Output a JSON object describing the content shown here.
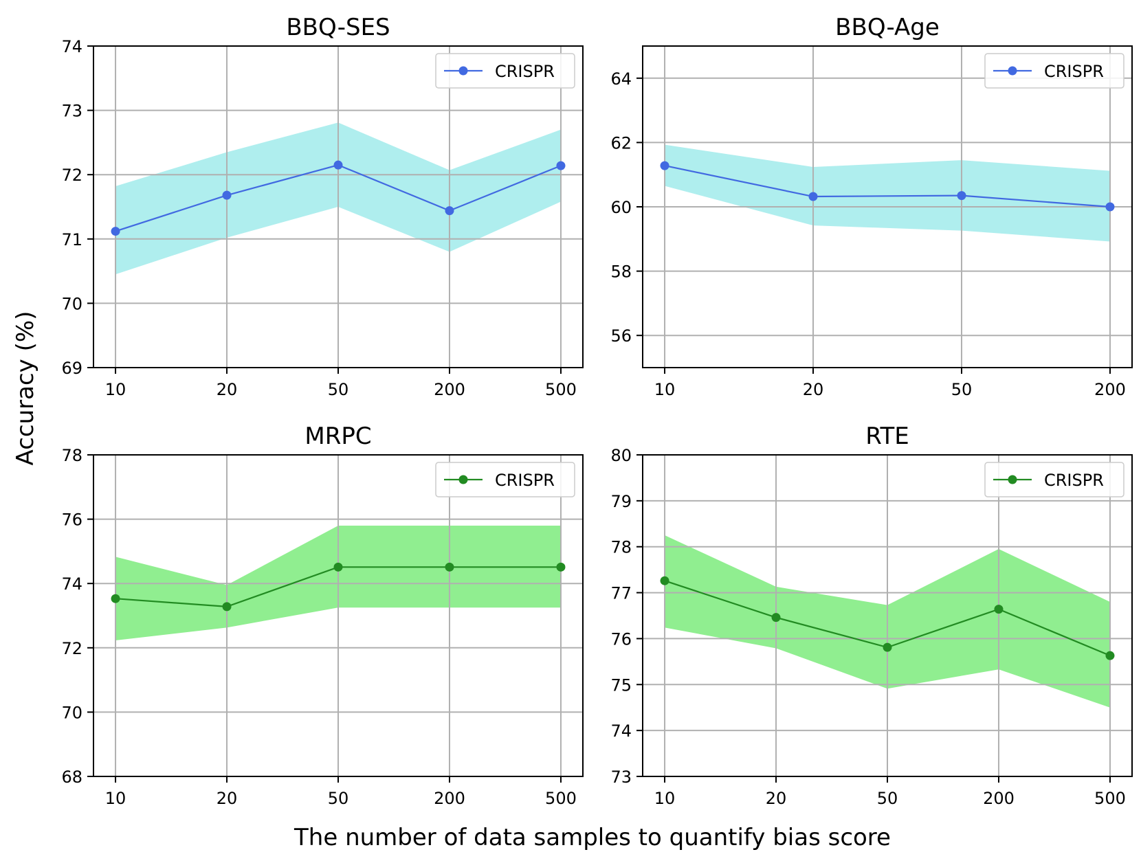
{
  "figure": {
    "ylabel": "Accuracy (%)",
    "xlabel": "The number of data samples to quantify bias score"
  },
  "chart_data": [
    {
      "type": "line",
      "title": "BBQ-SES",
      "categories": [
        "10",
        "20",
        "50",
        "200",
        "500"
      ],
      "ylim": [
        69,
        74
      ],
      "yticks": [
        69,
        70,
        71,
        72,
        73,
        74
      ],
      "grid": true,
      "legend": "top-right",
      "line_color": "#4169e1",
      "band_color": "#afeeee",
      "series": [
        {
          "name": "CRISPR",
          "values": [
            71.12,
            71.68,
            72.15,
            71.44,
            72.14
          ],
          "lower": [
            70.45,
            71.02,
            71.5,
            70.8,
            71.58
          ],
          "upper": [
            71.82,
            72.35,
            72.81,
            72.07,
            72.7
          ]
        }
      ]
    },
    {
      "type": "line",
      "title": "BBQ-Age",
      "categories": [
        "10",
        "20",
        "50",
        "200"
      ],
      "ylim": [
        55,
        65
      ],
      "yticks": [
        56,
        58,
        60,
        62,
        64
      ],
      "grid": true,
      "legend": "top-right",
      "line_color": "#4169e1",
      "band_color": "#afeeee",
      "series": [
        {
          "name": "CRISPR",
          "values": [
            61.28,
            60.32,
            60.35,
            60.0
          ],
          "lower": [
            60.65,
            59.42,
            59.26,
            58.92
          ],
          "upper": [
            61.93,
            61.24,
            61.45,
            61.12
          ]
        }
      ]
    },
    {
      "type": "line",
      "title": "MRPC",
      "categories": [
        "10",
        "20",
        "50",
        "200",
        "500"
      ],
      "ylim": [
        68,
        78
      ],
      "yticks": [
        68,
        70,
        72,
        74,
        76,
        78
      ],
      "grid": true,
      "legend": "top-right",
      "line_color": "#228b22",
      "band_color": "#90ee90",
      "series": [
        {
          "name": "CRISPR",
          "values": [
            73.53,
            73.28,
            74.51,
            74.51,
            74.51
          ],
          "lower": [
            72.23,
            72.63,
            73.25,
            73.25,
            73.25
          ],
          "upper": [
            74.83,
            73.95,
            75.8,
            75.8,
            75.8
          ]
        }
      ]
    },
    {
      "type": "line",
      "title": "RTE",
      "categories": [
        "10",
        "20",
        "50",
        "200",
        "500"
      ],
      "ylim": [
        73,
        80
      ],
      "yticks": [
        73,
        74,
        75,
        76,
        77,
        78,
        79,
        80
      ],
      "grid": true,
      "legend": "top-right",
      "line_color": "#228b22",
      "band_color": "#90ee90",
      "series": [
        {
          "name": "CRISPR",
          "values": [
            77.26,
            76.46,
            75.81,
            76.64,
            75.63
          ],
          "lower": [
            76.24,
            75.79,
            74.91,
            75.33,
            74.5
          ],
          "upper": [
            78.25,
            77.13,
            76.73,
            77.95,
            76.8
          ]
        }
      ]
    }
  ]
}
